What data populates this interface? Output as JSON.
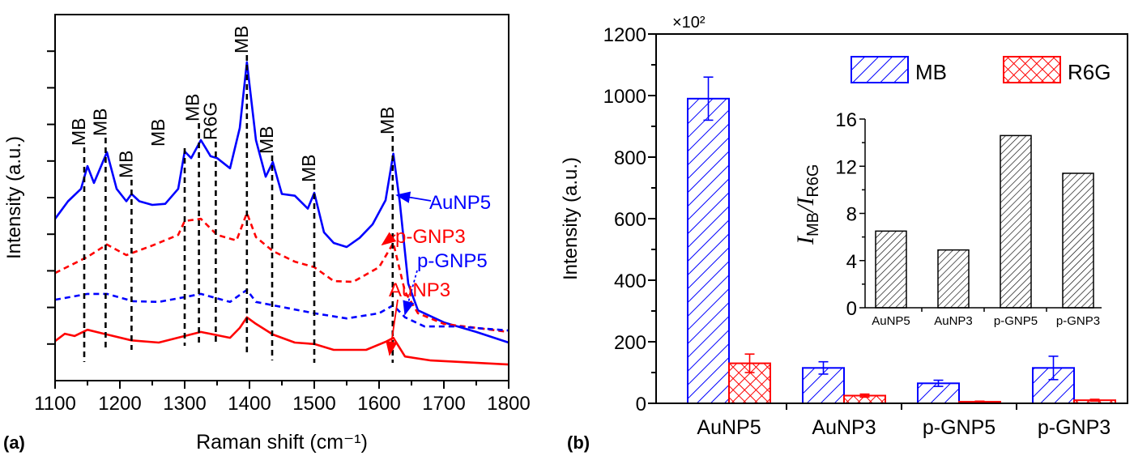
{
  "chart_data": [
    {
      "panel_label": "(a)",
      "type": "line",
      "xlabel": "Raman shift (cm⁻¹)",
      "ylabel": "Intensity (a.u.)",
      "xlim": [
        1100,
        1800
      ],
      "xticks": [
        1100,
        1200,
        1300,
        1400,
        1500,
        1600,
        1700,
        1800
      ],
      "y_tick_labels": false,
      "grid": false,
      "series": [
        {
          "name": "AuNP5",
          "color": "#0000ff",
          "dash": false,
          "points": [
            [
              1100,
              44.2
            ],
            [
              1120,
              49
            ],
            [
              1140,
              52.4
            ],
            [
              1150,
              58.6
            ],
            [
              1160,
              54
            ],
            [
              1180,
              62.4
            ],
            [
              1195,
              52.4
            ],
            [
              1210,
              49
            ],
            [
              1218,
              51
            ],
            [
              1230,
              49
            ],
            [
              1250,
              48
            ],
            [
              1270,
              48.3
            ],
            [
              1290,
              52.4
            ],
            [
              1300,
              62.6
            ],
            [
              1310,
              60.8
            ],
            [
              1325,
              65.7
            ],
            [
              1340,
              61.3
            ],
            [
              1350,
              60.8
            ],
            [
              1370,
              58
            ],
            [
              1385,
              69
            ],
            [
              1396,
              87
            ],
            [
              1410,
              65.7
            ],
            [
              1425,
              55.7
            ],
            [
              1436,
              59.7
            ],
            [
              1450,
              51
            ],
            [
              1470,
              50.5
            ],
            [
              1490,
              47
            ],
            [
              1500,
              51.3
            ],
            [
              1515,
              40.5
            ],
            [
              1530,
              37.6
            ],
            [
              1550,
              36.5
            ],
            [
              1570,
              39
            ],
            [
              1590,
              42.7
            ],
            [
              1610,
              49.3
            ],
            [
              1622,
              62
            ],
            [
              1632,
              48.7
            ],
            [
              1645,
              26.5
            ],
            [
              1660,
              19.2
            ],
            [
              1700,
              15.9
            ],
            [
              1750,
              13.3
            ],
            [
              1800,
              10.4
            ]
          ]
        },
        {
          "name": "p-GNP3",
          "color": "#ff0000",
          "dash": true,
          "points": [
            [
              1100,
              29.4
            ],
            [
              1150,
              33.8
            ],
            [
              1180,
              37.2
            ],
            [
              1210,
              34.3
            ],
            [
              1250,
              36.9
            ],
            [
              1290,
              39.8
            ],
            [
              1300,
              43.6
            ],
            [
              1325,
              44.2
            ],
            [
              1350,
              39.8
            ],
            [
              1380,
              38.3
            ],
            [
              1396,
              45.8
            ],
            [
              1410,
              39.2
            ],
            [
              1436,
              35.4
            ],
            [
              1470,
              32.5
            ],
            [
              1500,
              31
            ],
            [
              1530,
              27.2
            ],
            [
              1560,
              27
            ],
            [
              1600,
              31
            ],
            [
              1622,
              37.6
            ],
            [
              1640,
              24.3
            ],
            [
              1660,
              18.4
            ],
            [
              1700,
              15.5
            ],
            [
              1800,
              13.3
            ]
          ]
        },
        {
          "name": "p-GNP5",
          "color": "#0000ff",
          "dash": true,
          "points": [
            [
              1100,
              22.1
            ],
            [
              1150,
              23.7
            ],
            [
              1180,
              23.7
            ],
            [
              1220,
              21.7
            ],
            [
              1260,
              21.5
            ],
            [
              1300,
              22.8
            ],
            [
              1325,
              23.7
            ],
            [
              1370,
              21.5
            ],
            [
              1396,
              24.8
            ],
            [
              1410,
              21.5
            ],
            [
              1436,
              20.6
            ],
            [
              1500,
              18.4
            ],
            [
              1550,
              17
            ],
            [
              1600,
              18.4
            ],
            [
              1622,
              20.6
            ],
            [
              1640,
              17.3
            ],
            [
              1670,
              14.8
            ],
            [
              1720,
              14.8
            ],
            [
              1800,
              13.7
            ]
          ]
        },
        {
          "name": "AuNP3",
          "color": "#ff0000",
          "dash": false,
          "points": [
            [
              1100,
              10.8
            ],
            [
              1115,
              12.8
            ],
            [
              1130,
              12.2
            ],
            [
              1150,
              13.9
            ],
            [
              1180,
              12.6
            ],
            [
              1218,
              11
            ],
            [
              1260,
              10.4
            ],
            [
              1300,
              12.2
            ],
            [
              1325,
              13.3
            ],
            [
              1370,
              11.7
            ],
            [
              1385,
              14.4
            ],
            [
              1396,
              17.3
            ],
            [
              1410,
              15.5
            ],
            [
              1436,
              12.6
            ],
            [
              1470,
              10.4
            ],
            [
              1500,
              10
            ],
            [
              1530,
              8.4
            ],
            [
              1580,
              8.4
            ],
            [
              1610,
              10.6
            ],
            [
              1622,
              11.7
            ],
            [
              1640,
              6.6
            ],
            [
              1680,
              5.5
            ],
            [
              1800,
              4.4
            ]
          ]
        }
      ],
      "annotations": [
        {
          "x": 1145,
          "label": "MB"
        },
        {
          "x": 1178,
          "label": "MB"
        },
        {
          "x": 1218,
          "label": "MB"
        },
        {
          "x": 1300,
          "label": "MB"
        },
        {
          "x": 1322,
          "label": "MB"
        },
        {
          "x": 1348,
          "label": "R6G"
        },
        {
          "x": 1396,
          "label": "MB"
        },
        {
          "x": 1435,
          "label": "MB"
        },
        {
          "x": 1500,
          "label": "MB"
        },
        {
          "x": 1621,
          "label": "MB"
        }
      ]
    },
    {
      "panel_label": "(b)",
      "type": "bar",
      "ylabel": "Intensity (a.u.)",
      "multiplier": "×10²",
      "ylim": [
        0,
        1200
      ],
      "yticks": [
        0,
        200,
        400,
        600,
        800,
        1000,
        1200
      ],
      "categories": [
        "AuNP5",
        "AuNP3",
        "p-GNP5",
        "p-GNP3"
      ],
      "legend": "top-right",
      "series": [
        {
          "name": "MB",
          "color": "#0000ff",
          "hatch": "diagonal",
          "values": [
            990,
            115,
            65,
            115
          ],
          "errors": [
            70,
            20,
            10,
            38
          ]
        },
        {
          "name": "R6G",
          "color": "#ff0000",
          "hatch": "crosshatch",
          "values": [
            130,
            25,
            5,
            10
          ],
          "errors": [
            30,
            5,
            2,
            3
          ]
        }
      ],
      "inset": {
        "type": "bar",
        "ylabel_main": "I",
        "ylabel_sub1": "MB",
        "ylabel_sep": "/",
        "ylabel_sub2": "R6G",
        "ylim": [
          0,
          16
        ],
        "yticks": [
          0,
          4,
          8,
          12,
          16
        ],
        "categories": [
          "AuNP5",
          "AuNP3",
          "p-GNP5",
          "p-GNP3"
        ],
        "values": [
          6.5,
          4.9,
          14.6,
          11.4
        ],
        "color": "#000000",
        "hatch": "diagonal"
      }
    }
  ]
}
